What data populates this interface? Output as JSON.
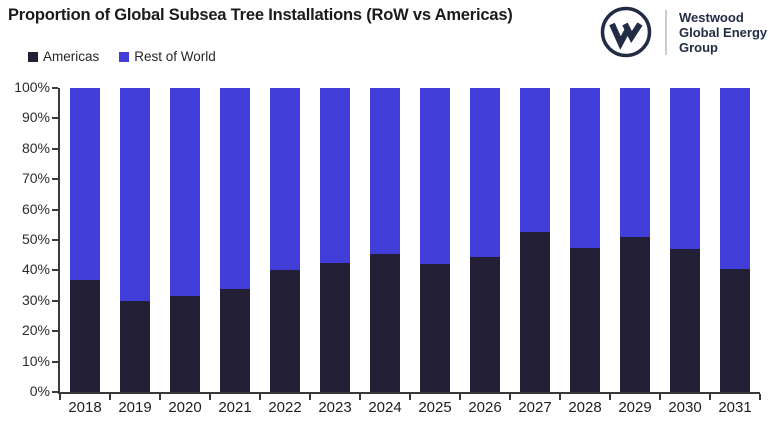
{
  "logo": {
    "monogram": "W",
    "company_lines": [
      "Westwood",
      "Global Energy",
      "Group"
    ],
    "color": "#222c44"
  },
  "colors": {
    "americas": "#221F37",
    "rest_of_world": "#403DD8",
    "axis": "#3a3a3a",
    "title_text": "#1b1b1b",
    "logo_navy": "#222c44",
    "logo_divider": "#cccccc"
  },
  "chart_data": {
    "type": "bar",
    "stacked": true,
    "title": "Proportion of Global Subsea Tree Installations (RoW vs Americas)",
    "categories": [
      "2018",
      "2019",
      "2020",
      "2021",
      "2022",
      "2023",
      "2024",
      "2025",
      "2026",
      "2027",
      "2028",
      "2029",
      "2030",
      "2031"
    ],
    "series": [
      {
        "name": "Americas",
        "color": "#221F37",
        "values": [
          37,
          30,
          31.5,
          34,
          40,
          42.5,
          45.5,
          42,
          44.5,
          52.5,
          47.5,
          51,
          47,
          40.5
        ]
      },
      {
        "name": "Rest of World",
        "color": "#403DD8",
        "values": [
          63,
          70,
          68.5,
          66,
          60,
          57.5,
          54.5,
          58,
          55.5,
          47.5,
          52.5,
          49,
          53,
          59.5
        ]
      }
    ],
    "xlabel": "",
    "ylabel": "",
    "ylim": [
      0,
      100
    ],
    "yticks": [
      "0%",
      "10%",
      "20%",
      "30%",
      "40%",
      "50%",
      "60%",
      "70%",
      "80%",
      "90%",
      "100%"
    ],
    "grid": false,
    "legend_position": "top-left",
    "values_unit": "percent"
  }
}
